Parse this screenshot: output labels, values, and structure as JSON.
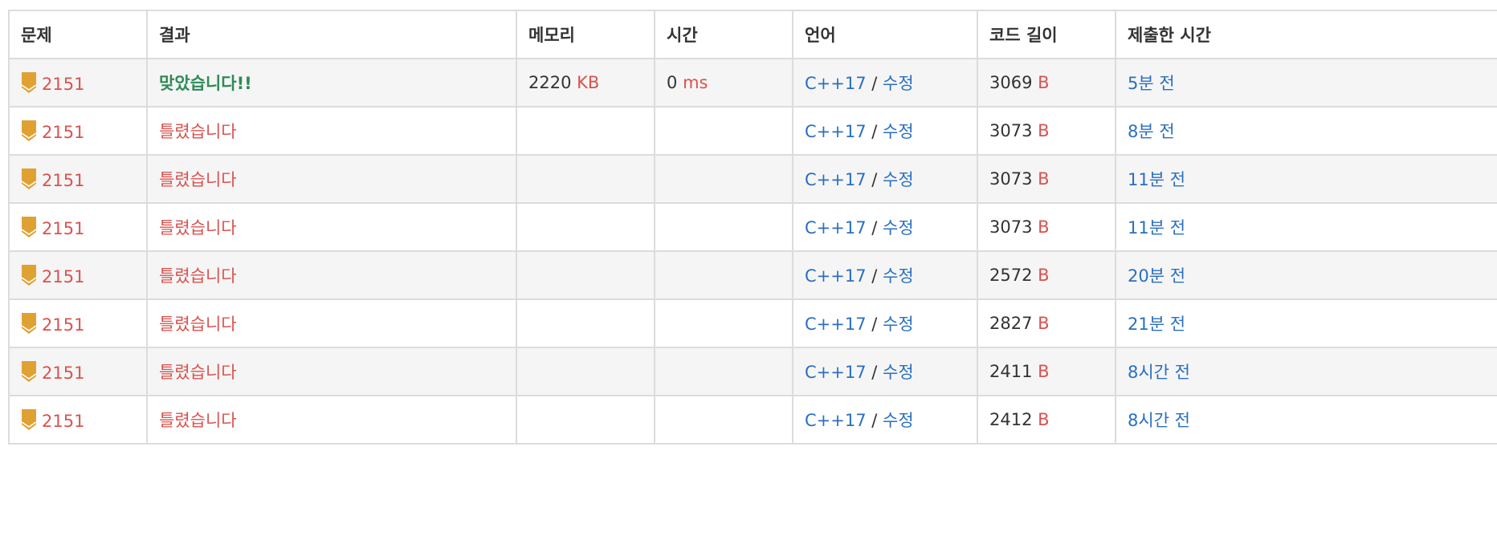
{
  "headers": [
    "문제",
    "결과",
    "메모리",
    "시간",
    "언어",
    "코드 길이",
    "제출한 시간"
  ],
  "rows": [
    {
      "tier": "3",
      "problem": "2151",
      "result": "맞았습니다!!",
      "result_type": "correct",
      "memory": "2220",
      "memory_unit": "KB",
      "time": "0",
      "time_unit": "ms",
      "lang": "C++17",
      "sep": "/",
      "edit": "수정",
      "length": "3069",
      "length_unit": "B",
      "submitted": "5분 전"
    },
    {
      "tier": "3",
      "problem": "2151",
      "result": "틀렸습니다",
      "result_type": "wrong",
      "memory": "",
      "memory_unit": "",
      "time": "",
      "time_unit": "",
      "lang": "C++17",
      "sep": "/",
      "edit": "수정",
      "length": "3073",
      "length_unit": "B",
      "submitted": "8분 전"
    },
    {
      "tier": "3",
      "problem": "2151",
      "result": "틀렸습니다",
      "result_type": "wrong",
      "memory": "",
      "memory_unit": "",
      "time": "",
      "time_unit": "",
      "lang": "C++17",
      "sep": "/",
      "edit": "수정",
      "length": "3073",
      "length_unit": "B",
      "submitted": "11분 전"
    },
    {
      "tier": "3",
      "problem": "2151",
      "result": "틀렸습니다",
      "result_type": "wrong",
      "memory": "",
      "memory_unit": "",
      "time": "",
      "time_unit": "",
      "lang": "C++17",
      "sep": "/",
      "edit": "수정",
      "length": "3073",
      "length_unit": "B",
      "submitted": "11분 전"
    },
    {
      "tier": "3",
      "problem": "2151",
      "result": "틀렸습니다",
      "result_type": "wrong",
      "memory": "",
      "memory_unit": "",
      "time": "",
      "time_unit": "",
      "lang": "C++17",
      "sep": "/",
      "edit": "수정",
      "length": "2572",
      "length_unit": "B",
      "submitted": "20분 전"
    },
    {
      "tier": "3",
      "problem": "2151",
      "result": "틀렸습니다",
      "result_type": "wrong",
      "memory": "",
      "memory_unit": "",
      "time": "",
      "time_unit": "",
      "lang": "C++17",
      "sep": "/",
      "edit": "수정",
      "length": "2827",
      "length_unit": "B",
      "submitted": "21분 전"
    },
    {
      "tier": "3",
      "problem": "2151",
      "result": "틀렸습니다",
      "result_type": "wrong",
      "memory": "",
      "memory_unit": "",
      "time": "",
      "time_unit": "",
      "lang": "C++17",
      "sep": "/",
      "edit": "수정",
      "length": "2411",
      "length_unit": "B",
      "submitted": "8시간 전"
    },
    {
      "tier": "3",
      "problem": "2151",
      "result": "틀렸습니다",
      "result_type": "wrong",
      "memory": "",
      "memory_unit": "",
      "time": "",
      "time_unit": "",
      "lang": "C++17",
      "sep": "/",
      "edit": "수정",
      "length": "2412",
      "length_unit": "B",
      "submitted": "8시간 전"
    }
  ],
  "colors": {
    "correct": "#2e8b57",
    "wrong": "#d9534f",
    "link": "#2a6fc0",
    "tier_badge": "#e0a133"
  }
}
